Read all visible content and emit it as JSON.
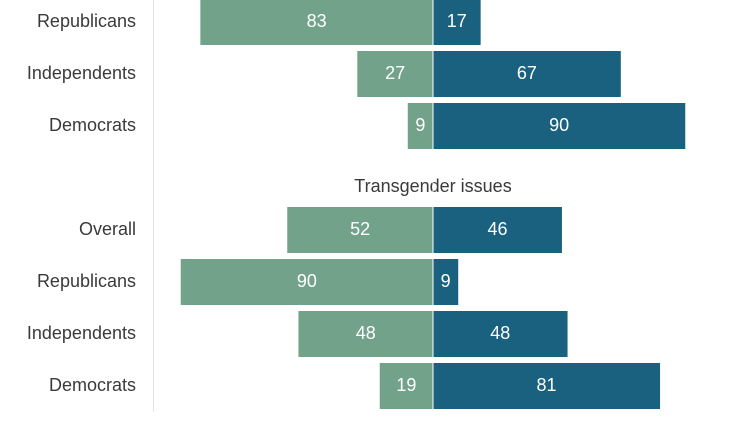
{
  "chart_data": {
    "type": "bar",
    "orientation": "horizontal-diverging",
    "series_colors": {
      "left": "#72a38a",
      "right": "#1a617f"
    },
    "groups": [
      {
        "title": "",
        "rows": [
          {
            "label": "Republicans",
            "left": 83,
            "right": 17
          },
          {
            "label": "Independents",
            "left": 27,
            "right": 67
          },
          {
            "label": "Democrats",
            "left": 9,
            "right": 90
          }
        ]
      },
      {
        "title": "Transgender issues",
        "rows": [
          {
            "label": "Overall",
            "left": 52,
            "right": 46
          },
          {
            "label": "Republicans",
            "left": 90,
            "right": 9
          },
          {
            "label": "Independents",
            "left": 48,
            "right": 48
          },
          {
            "label": "Democrats",
            "left": 19,
            "right": 81
          }
        ]
      }
    ]
  }
}
